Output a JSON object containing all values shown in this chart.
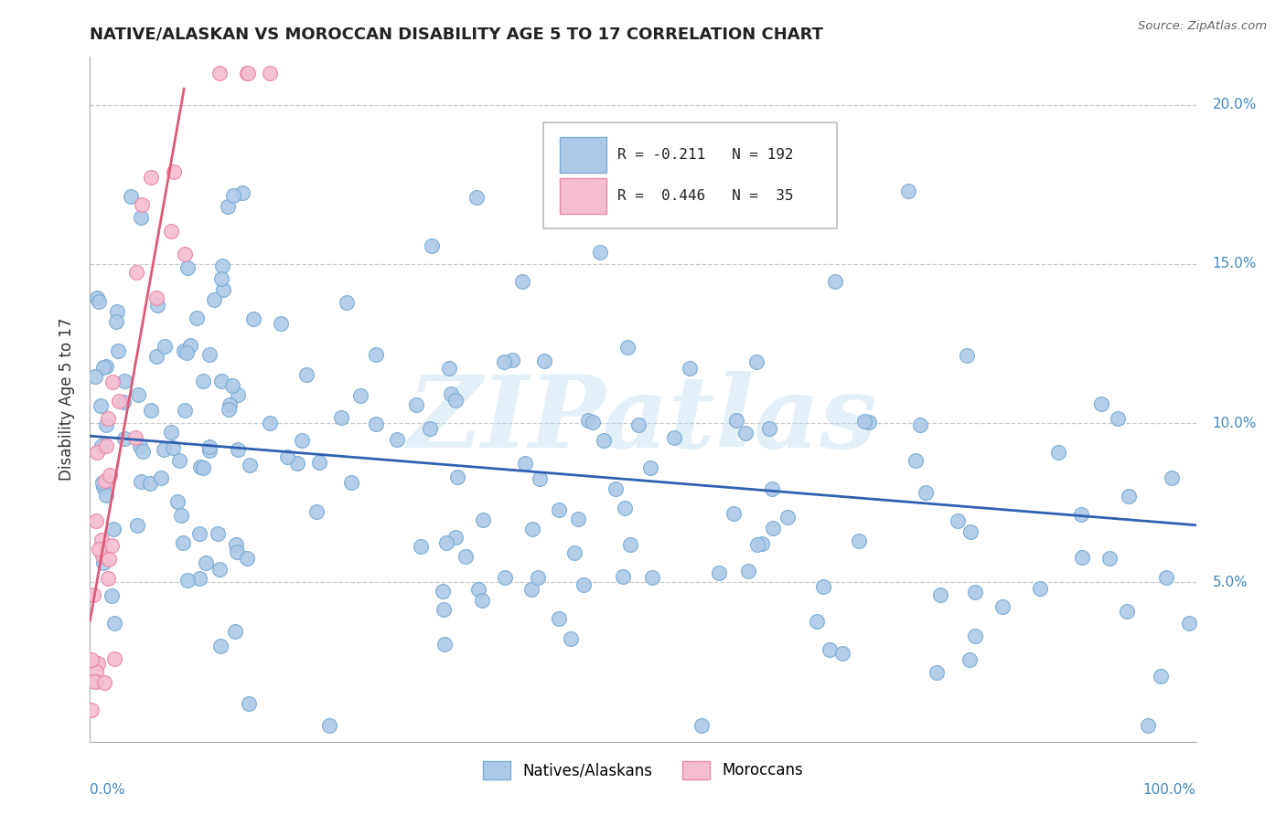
{
  "title": "NATIVE/ALASKAN VS MOROCCAN DISABILITY AGE 5 TO 17 CORRELATION CHART",
  "source": "Source: ZipAtlas.com",
  "ylabel": "Disability Age 5 to 17",
  "watermark": "ZIPatlas",
  "legend_blue_r": "R = -0.211",
  "legend_blue_n": "N = 192",
  "legend_pink_r": "R =  0.446",
  "legend_pink_n": "N =  35",
  "blue_color": "#adc9e8",
  "blue_edge": "#7aadd4",
  "pink_color": "#f5bdd0",
  "pink_edge": "#e888a8",
  "trendline_blue": "#3060b0",
  "trendline_pink": "#e05878",
  "background": "#ffffff",
  "grid_color": "#cccccc",
  "xlim": [
    0,
    100
  ],
  "ylim": [
    0.0,
    0.215
  ],
  "ytick_vals": [
    0.05,
    0.1,
    0.15,
    0.2
  ],
  "ytick_labels": [
    "5.0%",
    "10.0%",
    "15.0%",
    "20.0%"
  ],
  "blue_trend_x": [
    0,
    100
  ],
  "blue_trend_y": [
    0.096,
    0.068
  ],
  "pink_trend_x": [
    0,
    8.5
  ],
  "pink_trend_y": [
    0.038,
    0.205
  ],
  "seed": 17
}
